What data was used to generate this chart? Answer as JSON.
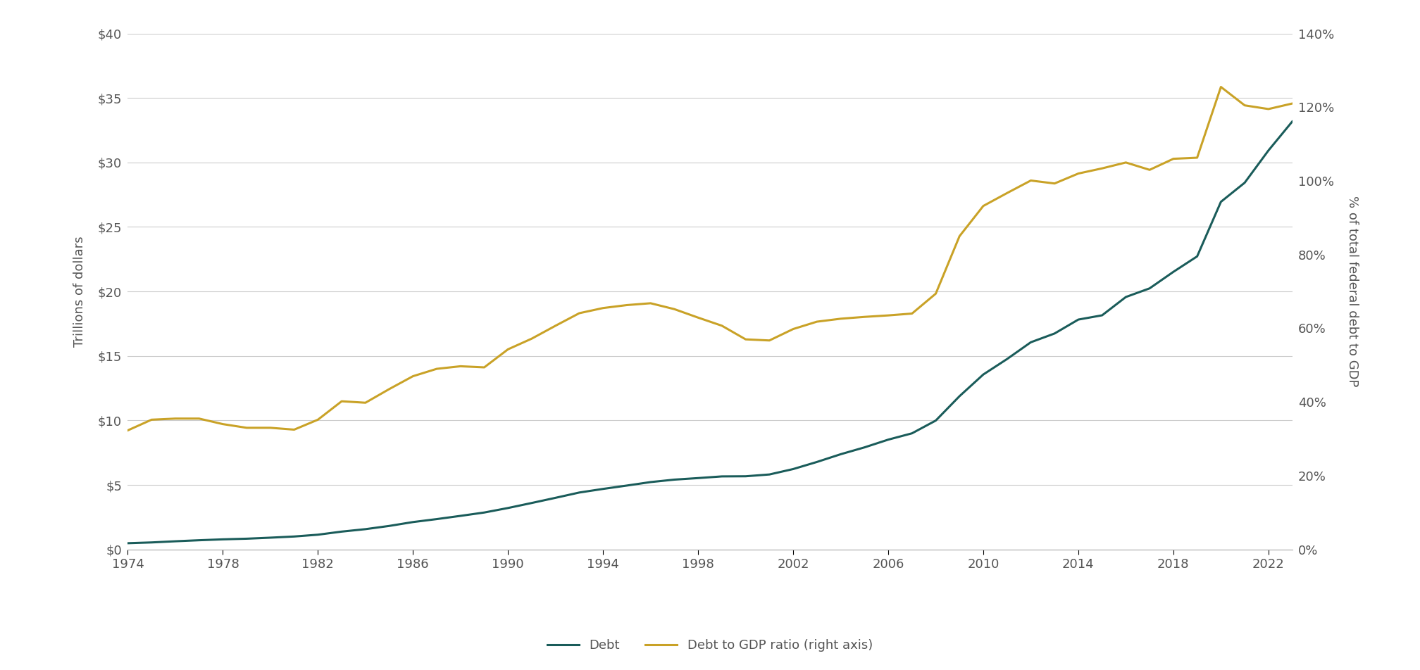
{
  "ylabel_left": "Trillions of dollars",
  "ylabel_right": "% of total federal debt to GDP",
  "xlim": [
    1974,
    2023
  ],
  "ylim_left": [
    0,
    40
  ],
  "ylim_right": [
    0,
    1.4
  ],
  "xticks": [
    1974,
    1978,
    1982,
    1986,
    1990,
    1994,
    1998,
    2002,
    2006,
    2010,
    2014,
    2018,
    2022
  ],
  "yticks_left": [
    0,
    5,
    10,
    15,
    20,
    25,
    30,
    35,
    40
  ],
  "yticks_right": [
    0,
    0.2,
    0.4,
    0.6,
    0.8,
    1.0,
    1.2,
    1.4
  ],
  "debt_color": "#1a5c5a",
  "gdp_color": "#c9a227",
  "background_color": "#ffffff",
  "grid_color": "#cccccc",
  "legend_debt": "Debt",
  "legend_gdp": "Debt to GDP ratio (right axis)",
  "debt_years": [
    1974,
    1975,
    1976,
    1977,
    1978,
    1979,
    1980,
    1981,
    1982,
    1983,
    1984,
    1985,
    1986,
    1987,
    1988,
    1989,
    1990,
    1991,
    1992,
    1993,
    1994,
    1995,
    1996,
    1997,
    1998,
    1999,
    2000,
    2001,
    2002,
    2003,
    2004,
    2005,
    2006,
    2007,
    2008,
    2009,
    2010,
    2011,
    2012,
    2013,
    2014,
    2015,
    2016,
    2017,
    2018,
    2019,
    2020,
    2021,
    2022,
    2023
  ],
  "debt_values": [
    0.48,
    0.54,
    0.63,
    0.71,
    0.78,
    0.83,
    0.91,
    1.0,
    1.14,
    1.38,
    1.57,
    1.82,
    2.12,
    2.35,
    2.6,
    2.86,
    3.21,
    3.6,
    4.0,
    4.41,
    4.69,
    4.95,
    5.22,
    5.41,
    5.53,
    5.66,
    5.67,
    5.81,
    6.23,
    6.78,
    7.38,
    7.91,
    8.51,
    9.0,
    9.99,
    11.88,
    13.56,
    14.76,
    16.06,
    16.74,
    17.82,
    18.15,
    19.57,
    20.24,
    21.52,
    22.72,
    26.95,
    28.43,
    30.93,
    33.17
  ],
  "gdp_years": [
    1974,
    1975,
    1976,
    1977,
    1978,
    1979,
    1980,
    1981,
    1982,
    1983,
    1984,
    1985,
    1986,
    1987,
    1988,
    1989,
    1990,
    1991,
    1992,
    1993,
    1994,
    1995,
    1996,
    1997,
    1998,
    1999,
    2000,
    2001,
    2002,
    2003,
    2004,
    2005,
    2006,
    2007,
    2008,
    2009,
    2010,
    2011,
    2012,
    2013,
    2014,
    2015,
    2016,
    2017,
    2018,
    2019,
    2020,
    2021,
    2022,
    2023
  ],
  "gdp_values": [
    0.323,
    0.352,
    0.355,
    0.355,
    0.34,
    0.33,
    0.33,
    0.325,
    0.352,
    0.402,
    0.398,
    0.435,
    0.47,
    0.49,
    0.497,
    0.494,
    0.543,
    0.572,
    0.607,
    0.641,
    0.655,
    0.663,
    0.668,
    0.652,
    0.629,
    0.607,
    0.57,
    0.567,
    0.598,
    0.618,
    0.626,
    0.631,
    0.635,
    0.64,
    0.694,
    0.85,
    0.932,
    0.967,
    1.001,
    0.993,
    1.02,
    1.034,
    1.05,
    1.03,
    1.06,
    1.063,
    1.255,
    1.205,
    1.195,
    1.21
  ]
}
